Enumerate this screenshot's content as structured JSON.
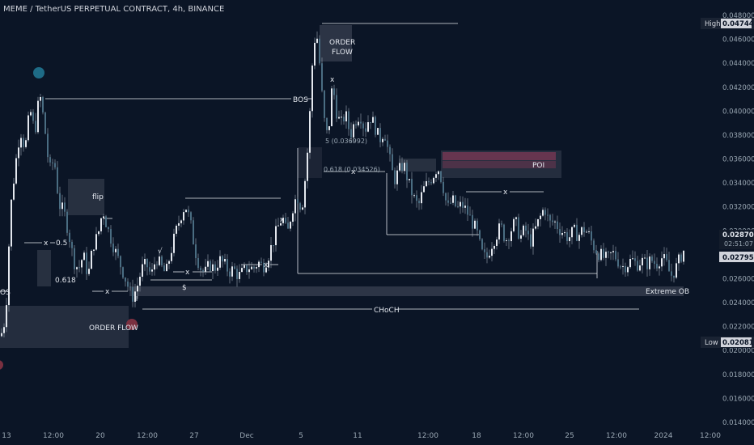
{
  "title": {
    "pair": "MEME / TetherUS PERPETUAL CONTRACT",
    "timeframe": "4h",
    "exchange": "BINANCE"
  },
  "colors": {
    "background": "#0b1526",
    "candle_up": "#e3e7ee",
    "candle_down": "#4a6d82",
    "wick": "#9aa7b3",
    "line": "#e3e7ee",
    "zone": "#3b4252",
    "poi": "#9c3d5c",
    "extreme_ob": "#4a5160",
    "text": "#d1d4dc",
    "marker_teal": "#1e6b86",
    "marker_red": "#7a3040"
  },
  "price_axis": {
    "ticks": [
      "0.048000",
      "0.046000",
      "0.044000",
      "0.042000",
      "0.040000",
      "0.038000",
      "0.036000",
      "0.034000",
      "0.032000",
      "0.030000",
      "0.028000",
      "0.026000",
      "0.024000",
      "0.022000",
      "0.020000",
      "0.018000",
      "0.016000",
      "0.014000"
    ],
    "high_label": "High",
    "high_value": "0.047440",
    "low_label": "Low",
    "low_value": "0.020815",
    "last_price": "0.028705",
    "countdown": "02:51:07",
    "mark_price": "0.027955"
  },
  "time_axis": {
    "ticks": [
      "13",
      "12:00",
      "20",
      "12:00",
      "27",
      "Dec",
      "5",
      "11",
      "12:00",
      "18",
      "12:00",
      "25",
      "12:00",
      "2024",
      "12:00"
    ]
  },
  "annotations": {
    "order_flow_top": "ORDER\nFLOW",
    "order_flow_bottom": "ORDER FLOW",
    "flip": "flip",
    "poi": "POI",
    "bos_top": "BOS",
    "bos_left": "OS",
    "choch": "CHoCH",
    "extreme_ob": "Extreme OB",
    "fib_618_left": "0.618",
    "fib_05": "0.5",
    "fib_618_mid": "0.618 (0.034526)",
    "fib_5_mid": "5 (0.036992)",
    "dollar": "$",
    "check": "√",
    "x": "x"
  },
  "chart_data": {
    "type": "candlestick",
    "title": "MEME / TetherUS PERPETUAL CONTRACT, 4h, BINANCE",
    "ylim": [
      0.014,
      0.048
    ],
    "key_prices": {
      "high": 0.04744,
      "low": 0.020815,
      "last": 0.028705,
      "mark": 0.027955
    },
    "path_points": [
      [
        0,
        0.0212
      ],
      [
        6,
        0.0228
      ],
      [
        12,
        0.0318
      ],
      [
        18,
        0.0355
      ],
      [
        24,
        0.0385
      ],
      [
        30,
        0.0368
      ],
      [
        36,
        0.0402
      ],
      [
        42,
        0.0382
      ],
      [
        48,
        0.0415
      ],
      [
        54,
        0.0388
      ],
      [
        60,
        0.035
      ],
      [
        66,
        0.036
      ],
      [
        72,
        0.0322
      ],
      [
        78,
        0.0316
      ],
      [
        84,
        0.0298
      ],
      [
        90,
        0.0275
      ],
      [
        96,
        0.0268
      ],
      [
        102,
        0.028
      ],
      [
        108,
        0.0262
      ],
      [
        114,
        0.0288
      ],
      [
        120,
        0.0296
      ],
      [
        126,
        0.0318
      ],
      [
        132,
        0.0302
      ],
      [
        138,
        0.029
      ],
      [
        144,
        0.0278
      ],
      [
        150,
        0.0268
      ],
      [
        156,
        0.0256
      ],
      [
        162,
        0.0244
      ],
      [
        168,
        0.0252
      ],
      [
        174,
        0.0268
      ],
      [
        180,
        0.0272
      ],
      [
        186,
        0.0262
      ],
      [
        192,
        0.0278
      ],
      [
        198,
        0.027
      ],
      [
        204,
        0.0264
      ],
      [
        210,
        0.0282
      ],
      [
        216,
        0.0298
      ],
      [
        222,
        0.0312
      ],
      [
        228,
        0.0322
      ],
      [
        234,
        0.0308
      ],
      [
        240,
        0.0284
      ],
      [
        246,
        0.027
      ],
      [
        252,
        0.0264
      ],
      [
        258,
        0.0272
      ],
      [
        264,
        0.0268
      ],
      [
        270,
        0.0276
      ],
      [
        276,
        0.0272
      ],
      [
        282,
        0.0266
      ],
      [
        288,
        0.0268
      ],
      [
        294,
        0.0262
      ],
      [
        300,
        0.0266
      ],
      [
        306,
        0.027
      ],
      [
        312,
        0.0268
      ],
      [
        318,
        0.0274
      ],
      [
        324,
        0.027
      ],
      [
        330,
        0.0278
      ],
      [
        336,
        0.029
      ],
      [
        342,
        0.0302
      ],
      [
        348,
        0.0312
      ],
      [
        354,
        0.0296
      ],
      [
        360,
        0.0318
      ],
      [
        366,
        0.033
      ],
      [
        372,
        0.0318
      ],
      [
        378,
        0.0355
      ],
      [
        382,
        0.0398
      ],
      [
        386,
        0.0452
      ],
      [
        390,
        0.0468
      ],
      [
        394,
        0.044
      ],
      [
        398,
        0.0405
      ],
      [
        402,
        0.0378
      ],
      [
        406,
        0.039
      ],
      [
        410,
        0.0425
      ],
      [
        414,
        0.0402
      ],
      [
        420,
        0.0388
      ],
      [
        426,
        0.0398
      ],
      [
        432,
        0.038
      ],
      [
        438,
        0.0392
      ],
      [
        444,
        0.0398
      ],
      [
        450,
        0.0384
      ],
      [
        456,
        0.0396
      ],
      [
        462,
        0.0388
      ],
      [
        468,
        0.0376
      ],
      [
        474,
        0.0384
      ],
      [
        480,
        0.0362
      ],
      [
        486,
        0.0342
      ],
      [
        492,
        0.035
      ],
      [
        498,
        0.0356
      ],
      [
        504,
        0.034
      ],
      [
        510,
        0.0328
      ],
      [
        516,
        0.032
      ],
      [
        522,
        0.0334
      ],
      [
        528,
        0.034
      ],
      [
        534,
        0.0346
      ],
      [
        540,
        0.0354
      ],
      [
        546,
        0.034
      ],
      [
        552,
        0.0318
      ],
      [
        558,
        0.0326
      ],
      [
        564,
        0.0318
      ],
      [
        570,
        0.0322
      ],
      [
        576,
        0.0316
      ],
      [
        582,
        0.0308
      ],
      [
        588,
        0.03
      ],
      [
        594,
        0.0282
      ],
      [
        600,
        0.0276
      ],
      [
        606,
        0.0288
      ],
      [
        612,
        0.0296
      ],
      [
        618,
        0.0304
      ],
      [
        624,
        0.0292
      ],
      [
        630,
        0.03
      ],
      [
        636,
        0.0308
      ],
      [
        642,
        0.0294
      ],
      [
        648,
        0.0302
      ],
      [
        654,
        0.029
      ],
      [
        660,
        0.03
      ],
      [
        666,
        0.031
      ],
      [
        672,
        0.032
      ],
      [
        678,
        0.0306
      ],
      [
        684,
        0.0308
      ],
      [
        690,
        0.0302
      ],
      [
        696,
        0.0298
      ],
      [
        702,
        0.0294
      ],
      [
        708,
        0.03
      ],
      [
        714,
        0.0296
      ],
      [
        720,
        0.0302
      ],
      [
        726,
        0.0298
      ],
      [
        732,
        0.0288
      ],
      [
        738,
        0.0282
      ],
      [
        744,
        0.0278
      ],
      [
        750,
        0.0276
      ],
      [
        756,
        0.0282
      ],
      [
        762,
        0.0276
      ],
      [
        768,
        0.027
      ],
      [
        774,
        0.0272
      ],
      [
        780,
        0.0276
      ],
      [
        786,
        0.0272
      ],
      [
        792,
        0.0275
      ],
      [
        798,
        0.0272
      ],
      [
        804,
        0.0276
      ],
      [
        810,
        0.0272
      ],
      [
        816,
        0.0278
      ],
      [
        822,
        0.0274
      ],
      [
        828,
        0.0262
      ],
      [
        834,
        0.0268
      ],
      [
        840,
        0.0278
      ],
      [
        846,
        0.0286
      ]
    ]
  }
}
